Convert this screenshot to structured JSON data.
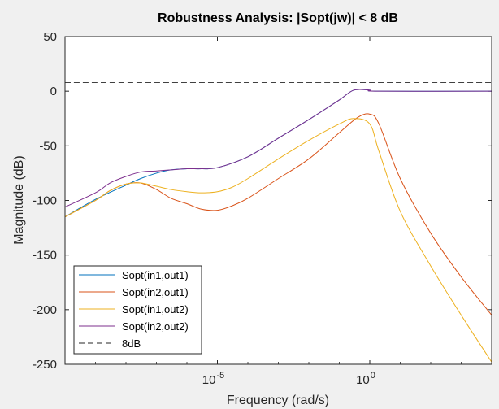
{
  "chart_data": {
    "type": "line",
    "title": "Robustness Analysis: |Sopt(jw)| < 8 dB",
    "xlabel": "Frequency  (rad/s)",
    "ylabel": "Magnitude (dB)",
    "x_scale": "log",
    "xlim": [
      1e-10,
      10000
    ],
    "ylim": [
      -250,
      50
    ],
    "x_ticks": [
      {
        "value": 1e-05,
        "base": "10",
        "exp": "-5"
      },
      {
        "value": 1,
        "base": "10",
        "exp": "0"
      }
    ],
    "y_ticks": [
      50,
      0,
      -50,
      -100,
      -150,
      -200,
      -250
    ],
    "grid": false,
    "legend": {
      "position": "bottom-left",
      "entries": [
        "Sopt(in1,out1)",
        "Sopt(in2,out1)",
        "Sopt(in1,out2)",
        "Sopt(in2,out2)",
        "8dB"
      ]
    },
    "series": [
      {
        "name": "Sopt(in1,out1)",
        "color": "#0072bd",
        "dash": false,
        "points": [
          [
            1e-10,
            -115
          ],
          [
            1e-09,
            -99
          ],
          [
            1e-08,
            -86
          ],
          [
            3e-08,
            -80
          ],
          [
            1e-07,
            -75
          ],
          [
            3e-07,
            -72
          ],
          [
            1e-06,
            -71
          ],
          [
            3e-06,
            -71
          ],
          [
            1e-05,
            -70
          ],
          [
            0.0001,
            -60
          ],
          [
            0.001,
            -43
          ],
          [
            0.01,
            -26
          ],
          [
            0.1,
            -8
          ],
          [
            0.3,
            1
          ],
          [
            1,
            1
          ],
          [
            2,
            0
          ],
          [
            10000,
            0
          ]
        ]
      },
      {
        "name": "Sopt(in2,out1)",
        "color": "#d95319",
        "dash": false,
        "points": [
          [
            1e-10,
            -115
          ],
          [
            1e-09,
            -100
          ],
          [
            3e-09,
            -91
          ],
          [
            1e-08,
            -85
          ],
          [
            3e-08,
            -84
          ],
          [
            1e-07,
            -90
          ],
          [
            3e-07,
            -98
          ],
          [
            1e-06,
            -103
          ],
          [
            3e-06,
            -108
          ],
          [
            1e-05,
            -109
          ],
          [
            3e-05,
            -105
          ],
          [
            0.0001,
            -98
          ],
          [
            0.001,
            -80
          ],
          [
            0.01,
            -62
          ],
          [
            0.1,
            -38
          ],
          [
            0.4,
            -24
          ],
          [
            1,
            -21
          ],
          [
            2,
            -30
          ],
          [
            10,
            -80
          ],
          [
            100,
            -130
          ],
          [
            1000,
            -170
          ],
          [
            10000,
            -205
          ]
        ]
      },
      {
        "name": "Sopt(in1,out2)",
        "color": "#edb120",
        "dash": false,
        "points": [
          [
            1e-10,
            -115
          ],
          [
            1e-09,
            -100
          ],
          [
            3e-09,
            -91
          ],
          [
            1e-08,
            -85
          ],
          [
            3e-08,
            -84
          ],
          [
            1e-07,
            -87
          ],
          [
            3e-07,
            -90
          ],
          [
            1e-06,
            -92
          ],
          [
            3e-06,
            -93
          ],
          [
            1e-05,
            -92
          ],
          [
            3e-05,
            -88
          ],
          [
            0.0001,
            -80
          ],
          [
            0.001,
            -62
          ],
          [
            0.01,
            -45
          ],
          [
            0.1,
            -30
          ],
          [
            0.3,
            -25
          ],
          [
            1,
            -30
          ],
          [
            2,
            -55
          ],
          [
            10,
            -110
          ],
          [
            100,
            -160
          ],
          [
            1000,
            -205
          ],
          [
            10000,
            -248
          ]
        ]
      },
      {
        "name": "Sopt(in2,out2)",
        "color": "#7e2f8e",
        "dash": false,
        "points": [
          [
            1e-10,
            -106
          ],
          [
            1e-09,
            -93
          ],
          [
            3e-09,
            -84
          ],
          [
            1e-08,
            -78
          ],
          [
            3e-08,
            -74
          ],
          [
            1e-07,
            -73
          ],
          [
            3e-07,
            -72
          ],
          [
            1e-06,
            -71
          ],
          [
            3e-06,
            -71
          ],
          [
            1e-05,
            -70
          ],
          [
            0.0001,
            -60
          ],
          [
            0.001,
            -43
          ],
          [
            0.01,
            -26
          ],
          [
            0.1,
            -8
          ],
          [
            0.3,
            1
          ],
          [
            1,
            1
          ],
          [
            2,
            0
          ],
          [
            10000,
            0
          ]
        ]
      },
      {
        "name": "8dB",
        "color": "#262626",
        "dash": true,
        "points": [
          [
            1e-10,
            8
          ],
          [
            10000,
            8
          ]
        ]
      }
    ]
  }
}
